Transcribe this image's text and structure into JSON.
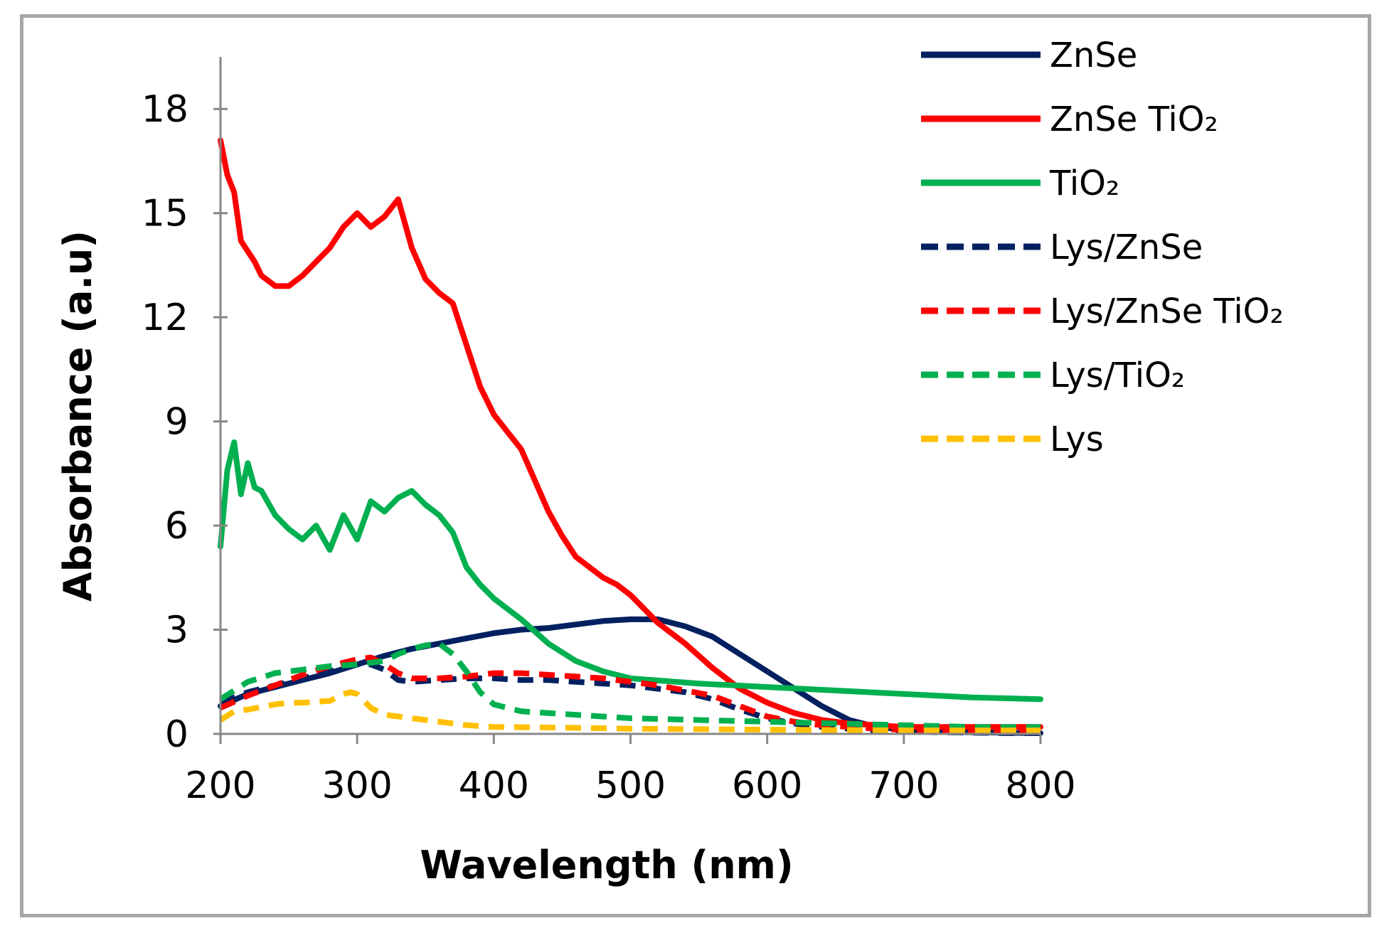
{
  "chart_data": {
    "type": "line",
    "title": "",
    "xlabel": "Wavelength (nm)",
    "ylabel": "Absorbance (a.u)",
    "xlim": [
      200,
      800
    ],
    "ylim": [
      0,
      19.5
    ],
    "xticks": [
      "200",
      "300",
      "400",
      "500",
      "600",
      "700",
      "800"
    ],
    "yticks": [
      "0",
      "3",
      "6",
      "9",
      "12",
      "15",
      "18"
    ],
    "grid": false,
    "legend_position": "top-right",
    "series": [
      {
        "name": "ZnSe",
        "color": "#002060",
        "dash": "solid",
        "x": [
          200,
          220,
          240,
          260,
          280,
          300,
          320,
          340,
          360,
          380,
          400,
          420,
          440,
          460,
          480,
          500,
          520,
          540,
          560,
          580,
          600,
          620,
          640,
          660,
          680,
          700,
          720,
          740,
          760,
          780,
          800
        ],
        "y": [
          0.8,
          1.15,
          1.35,
          1.55,
          1.75,
          2.0,
          2.25,
          2.45,
          2.6,
          2.75,
          2.9,
          3.0,
          3.05,
          3.15,
          3.25,
          3.3,
          3.3,
          3.1,
          2.8,
          2.3,
          1.8,
          1.3,
          0.8,
          0.4,
          0.2,
          0.12,
          0.08,
          0.05,
          0.04,
          0.03,
          0.02
        ]
      },
      {
        "name": "ZnSe TiO₂",
        "color": "#ff0000",
        "dash": "solid",
        "x": [
          200,
          205,
          210,
          215,
          220,
          225,
          230,
          240,
          250,
          260,
          270,
          280,
          290,
          300,
          310,
          320,
          330,
          340,
          350,
          360,
          370,
          380,
          390,
          395,
          400,
          410,
          420,
          430,
          440,
          450,
          460,
          470,
          480,
          490,
          500,
          510,
          520,
          540,
          560,
          580,
          600,
          620,
          640,
          660,
          680,
          700,
          720,
          740,
          760,
          780,
          800
        ],
        "y": [
          17.1,
          16.1,
          15.6,
          14.2,
          13.9,
          13.6,
          13.2,
          12.9,
          12.9,
          13.2,
          13.6,
          14.0,
          14.6,
          15.0,
          14.6,
          14.9,
          15.4,
          14.0,
          13.1,
          12.7,
          12.4,
          11.2,
          10.0,
          9.6,
          9.2,
          8.7,
          8.2,
          7.3,
          6.4,
          5.7,
          5.1,
          4.8,
          4.5,
          4.3,
          4.0,
          3.6,
          3.2,
          2.6,
          1.9,
          1.3,
          0.9,
          0.6,
          0.4,
          0.3,
          0.25,
          0.2,
          0.2,
          0.2,
          0.2,
          0.2,
          0.2
        ]
      },
      {
        "name": "TiO₂",
        "color": "#00b050",
        "dash": "solid",
        "x": [
          200,
          205,
          210,
          215,
          220,
          225,
          230,
          240,
          250,
          260,
          270,
          280,
          290,
          300,
          310,
          320,
          330,
          340,
          350,
          360,
          370,
          380,
          390,
          400,
          420,
          440,
          460,
          480,
          500,
          550,
          600,
          650,
          700,
          750,
          800
        ],
        "y": [
          5.4,
          7.6,
          8.4,
          6.9,
          7.8,
          7.1,
          7.0,
          6.3,
          5.9,
          5.6,
          6.0,
          5.3,
          6.3,
          5.6,
          6.7,
          6.4,
          6.8,
          7.0,
          6.6,
          6.3,
          5.8,
          4.8,
          4.3,
          3.9,
          3.3,
          2.6,
          2.1,
          1.8,
          1.6,
          1.45,
          1.35,
          1.25,
          1.15,
          1.05,
          1.0
        ]
      },
      {
        "name": "Lys/ZnSe",
        "color": "#002060",
        "dash": "dashed",
        "x": [
          200,
          220,
          240,
          260,
          280,
          300,
          310,
          320,
          330,
          340,
          360,
          380,
          400,
          420,
          440,
          460,
          480,
          500,
          520,
          540,
          560,
          580,
          600,
          620,
          640,
          660,
          680,
          700,
          720,
          740,
          760,
          780,
          800
        ],
        "y": [
          0.9,
          1.2,
          1.4,
          1.6,
          1.8,
          2.0,
          2.0,
          1.85,
          1.55,
          1.5,
          1.55,
          1.6,
          1.6,
          1.55,
          1.55,
          1.5,
          1.45,
          1.4,
          1.3,
          1.2,
          1.0,
          0.7,
          0.45,
          0.3,
          0.2,
          0.15,
          0.1,
          0.08,
          0.05,
          0.04,
          0.03,
          0.02,
          0.02
        ]
      },
      {
        "name": "Lys/ZnSe TiO₂",
        "color": "#ff0000",
        "dash": "dashed",
        "x": [
          200,
          220,
          240,
          260,
          280,
          300,
          310,
          320,
          330,
          340,
          360,
          380,
          400,
          420,
          440,
          460,
          480,
          500,
          520,
          540,
          560,
          580,
          600,
          620,
          640,
          660,
          680,
          700,
          720,
          740,
          760,
          780,
          800
        ],
        "y": [
          0.75,
          1.1,
          1.4,
          1.7,
          1.95,
          2.15,
          2.2,
          2.0,
          1.75,
          1.6,
          1.6,
          1.65,
          1.75,
          1.75,
          1.7,
          1.65,
          1.6,
          1.5,
          1.4,
          1.25,
          1.1,
          0.8,
          0.5,
          0.35,
          0.25,
          0.2,
          0.15,
          0.12,
          0.1,
          0.08,
          0.06,
          0.05,
          0.05
        ]
      },
      {
        "name": "Lys/TiO₂",
        "color": "#00b050",
        "dash": "dashed",
        "x": [
          200,
          220,
          240,
          260,
          280,
          300,
          310,
          320,
          330,
          340,
          350,
          360,
          370,
          380,
          390,
          400,
          420,
          440,
          460,
          480,
          500,
          550,
          600,
          650,
          700,
          750,
          800
        ],
        "y": [
          1.0,
          1.5,
          1.75,
          1.85,
          1.95,
          2.0,
          2.05,
          2.1,
          2.3,
          2.45,
          2.55,
          2.6,
          2.3,
          1.8,
          1.2,
          0.85,
          0.65,
          0.6,
          0.55,
          0.5,
          0.45,
          0.4,
          0.35,
          0.3,
          0.25,
          0.2,
          0.2
        ]
      },
      {
        "name": "Lys",
        "color": "#ffc000",
        "dash": "dashed",
        "x": [
          200,
          210,
          220,
          240,
          250,
          260,
          280,
          290,
          295,
          300,
          305,
          310,
          320,
          340,
          360,
          380,
          400,
          450,
          500,
          600,
          700,
          800
        ],
        "y": [
          0.4,
          0.65,
          0.7,
          0.85,
          0.9,
          0.9,
          0.95,
          1.15,
          1.2,
          1.15,
          0.95,
          0.75,
          0.55,
          0.45,
          0.35,
          0.25,
          0.2,
          0.18,
          0.15,
          0.12,
          0.1,
          0.1
        ]
      }
    ]
  }
}
